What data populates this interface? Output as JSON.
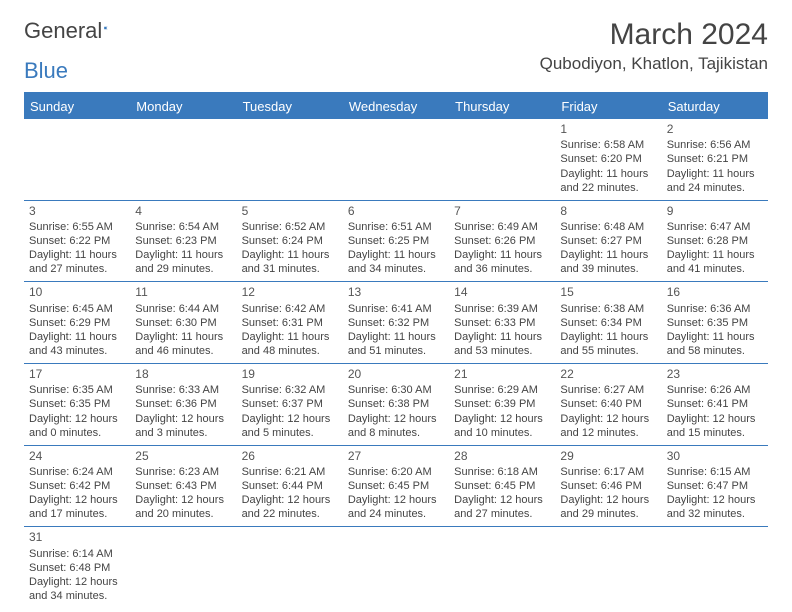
{
  "header": {
    "logo_general": "General",
    "logo_blue": "Blue",
    "month_title": "March 2024",
    "location": "Qubodiyon, Khatlon, Tajikistan"
  },
  "colors": {
    "brand_blue": "#3a7abd",
    "text": "#444444",
    "background": "#ffffff"
  },
  "daynames": [
    "Sunday",
    "Monday",
    "Tuesday",
    "Wednesday",
    "Thursday",
    "Friday",
    "Saturday"
  ],
  "weeks": [
    [
      null,
      null,
      null,
      null,
      null,
      {
        "num": "1",
        "sunrise": "Sunrise: 6:58 AM",
        "sunset": "Sunset: 6:20 PM",
        "day1": "Daylight: 11 hours",
        "day2": "and 22 minutes."
      },
      {
        "num": "2",
        "sunrise": "Sunrise: 6:56 AM",
        "sunset": "Sunset: 6:21 PM",
        "day1": "Daylight: 11 hours",
        "day2": "and 24 minutes."
      }
    ],
    [
      {
        "num": "3",
        "sunrise": "Sunrise: 6:55 AM",
        "sunset": "Sunset: 6:22 PM",
        "day1": "Daylight: 11 hours",
        "day2": "and 27 minutes."
      },
      {
        "num": "4",
        "sunrise": "Sunrise: 6:54 AM",
        "sunset": "Sunset: 6:23 PM",
        "day1": "Daylight: 11 hours",
        "day2": "and 29 minutes."
      },
      {
        "num": "5",
        "sunrise": "Sunrise: 6:52 AM",
        "sunset": "Sunset: 6:24 PM",
        "day1": "Daylight: 11 hours",
        "day2": "and 31 minutes."
      },
      {
        "num": "6",
        "sunrise": "Sunrise: 6:51 AM",
        "sunset": "Sunset: 6:25 PM",
        "day1": "Daylight: 11 hours",
        "day2": "and 34 minutes."
      },
      {
        "num": "7",
        "sunrise": "Sunrise: 6:49 AM",
        "sunset": "Sunset: 6:26 PM",
        "day1": "Daylight: 11 hours",
        "day2": "and 36 minutes."
      },
      {
        "num": "8",
        "sunrise": "Sunrise: 6:48 AM",
        "sunset": "Sunset: 6:27 PM",
        "day1": "Daylight: 11 hours",
        "day2": "and 39 minutes."
      },
      {
        "num": "9",
        "sunrise": "Sunrise: 6:47 AM",
        "sunset": "Sunset: 6:28 PM",
        "day1": "Daylight: 11 hours",
        "day2": "and 41 minutes."
      }
    ],
    [
      {
        "num": "10",
        "sunrise": "Sunrise: 6:45 AM",
        "sunset": "Sunset: 6:29 PM",
        "day1": "Daylight: 11 hours",
        "day2": "and 43 minutes."
      },
      {
        "num": "11",
        "sunrise": "Sunrise: 6:44 AM",
        "sunset": "Sunset: 6:30 PM",
        "day1": "Daylight: 11 hours",
        "day2": "and 46 minutes."
      },
      {
        "num": "12",
        "sunrise": "Sunrise: 6:42 AM",
        "sunset": "Sunset: 6:31 PM",
        "day1": "Daylight: 11 hours",
        "day2": "and 48 minutes."
      },
      {
        "num": "13",
        "sunrise": "Sunrise: 6:41 AM",
        "sunset": "Sunset: 6:32 PM",
        "day1": "Daylight: 11 hours",
        "day2": "and 51 minutes."
      },
      {
        "num": "14",
        "sunrise": "Sunrise: 6:39 AM",
        "sunset": "Sunset: 6:33 PM",
        "day1": "Daylight: 11 hours",
        "day2": "and 53 minutes."
      },
      {
        "num": "15",
        "sunrise": "Sunrise: 6:38 AM",
        "sunset": "Sunset: 6:34 PM",
        "day1": "Daylight: 11 hours",
        "day2": "and 55 minutes."
      },
      {
        "num": "16",
        "sunrise": "Sunrise: 6:36 AM",
        "sunset": "Sunset: 6:35 PM",
        "day1": "Daylight: 11 hours",
        "day2": "and 58 minutes."
      }
    ],
    [
      {
        "num": "17",
        "sunrise": "Sunrise: 6:35 AM",
        "sunset": "Sunset: 6:35 PM",
        "day1": "Daylight: 12 hours",
        "day2": "and 0 minutes."
      },
      {
        "num": "18",
        "sunrise": "Sunrise: 6:33 AM",
        "sunset": "Sunset: 6:36 PM",
        "day1": "Daylight: 12 hours",
        "day2": "and 3 minutes."
      },
      {
        "num": "19",
        "sunrise": "Sunrise: 6:32 AM",
        "sunset": "Sunset: 6:37 PM",
        "day1": "Daylight: 12 hours",
        "day2": "and 5 minutes."
      },
      {
        "num": "20",
        "sunrise": "Sunrise: 6:30 AM",
        "sunset": "Sunset: 6:38 PM",
        "day1": "Daylight: 12 hours",
        "day2": "and 8 minutes."
      },
      {
        "num": "21",
        "sunrise": "Sunrise: 6:29 AM",
        "sunset": "Sunset: 6:39 PM",
        "day1": "Daylight: 12 hours",
        "day2": "and 10 minutes."
      },
      {
        "num": "22",
        "sunrise": "Sunrise: 6:27 AM",
        "sunset": "Sunset: 6:40 PM",
        "day1": "Daylight: 12 hours",
        "day2": "and 12 minutes."
      },
      {
        "num": "23",
        "sunrise": "Sunrise: 6:26 AM",
        "sunset": "Sunset: 6:41 PM",
        "day1": "Daylight: 12 hours",
        "day2": "and 15 minutes."
      }
    ],
    [
      {
        "num": "24",
        "sunrise": "Sunrise: 6:24 AM",
        "sunset": "Sunset: 6:42 PM",
        "day1": "Daylight: 12 hours",
        "day2": "and 17 minutes."
      },
      {
        "num": "25",
        "sunrise": "Sunrise: 6:23 AM",
        "sunset": "Sunset: 6:43 PM",
        "day1": "Daylight: 12 hours",
        "day2": "and 20 minutes."
      },
      {
        "num": "26",
        "sunrise": "Sunrise: 6:21 AM",
        "sunset": "Sunset: 6:44 PM",
        "day1": "Daylight: 12 hours",
        "day2": "and 22 minutes."
      },
      {
        "num": "27",
        "sunrise": "Sunrise: 6:20 AM",
        "sunset": "Sunset: 6:45 PM",
        "day1": "Daylight: 12 hours",
        "day2": "and 24 minutes."
      },
      {
        "num": "28",
        "sunrise": "Sunrise: 6:18 AM",
        "sunset": "Sunset: 6:45 PM",
        "day1": "Daylight: 12 hours",
        "day2": "and 27 minutes."
      },
      {
        "num": "29",
        "sunrise": "Sunrise: 6:17 AM",
        "sunset": "Sunset: 6:46 PM",
        "day1": "Daylight: 12 hours",
        "day2": "and 29 minutes."
      },
      {
        "num": "30",
        "sunrise": "Sunrise: 6:15 AM",
        "sunset": "Sunset: 6:47 PM",
        "day1": "Daylight: 12 hours",
        "day2": "and 32 minutes."
      }
    ],
    [
      {
        "num": "31",
        "sunrise": "Sunrise: 6:14 AM",
        "sunset": "Sunset: 6:48 PM",
        "day1": "Daylight: 12 hours",
        "day2": "and 34 minutes."
      },
      null,
      null,
      null,
      null,
      null,
      null
    ]
  ]
}
